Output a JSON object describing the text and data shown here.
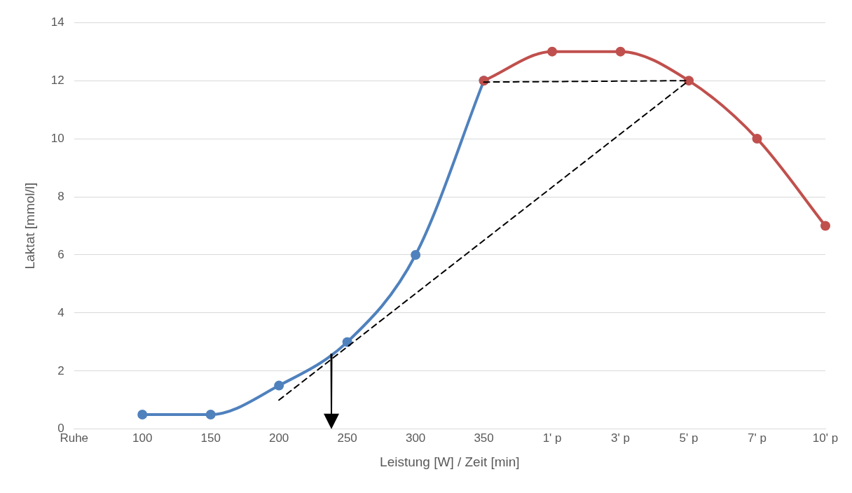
{
  "chart_data": {
    "type": "line",
    "xlabel": "Leistung [W] / Zeit [min]",
    "ylabel": "Laktat [mmol/l]",
    "categories": [
      "Ruhe",
      "100",
      "150",
      "200",
      "250",
      "300",
      "350",
      "1' p",
      "3' p",
      "5' p",
      "7' p",
      "10' p"
    ],
    "ylim": [
      0,
      14
    ],
    "yticks": [
      0,
      2,
      4,
      6,
      8,
      10,
      12,
      14
    ],
    "grid": "y",
    "legend": false,
    "marker": "circle",
    "series": [
      {
        "color": "#4f81bd",
        "values": [
          null,
          0.5,
          0.5,
          1.5,
          3,
          6,
          12,
          null,
          null,
          null,
          null,
          null
        ]
      },
      {
        "color": "#c0504d",
        "values": [
          null,
          null,
          null,
          null,
          null,
          null,
          12,
          13,
          13,
          12,
          10,
          7
        ]
      },
      {
        "color": "#000000",
        "marker": "none",
        "line_style": "dashed",
        "values": [
          null,
          null,
          null,
          1,
          null,
          null,
          null,
          null,
          null,
          12,
          null,
          null
        ]
      },
      {
        "color": "#000000",
        "marker": "none",
        "line_style": "dashed",
        "values": [
          null,
          null,
          null,
          null,
          null,
          null,
          11.95,
          null,
          null,
          12,
          null,
          null
        ]
      }
    ]
  }
}
